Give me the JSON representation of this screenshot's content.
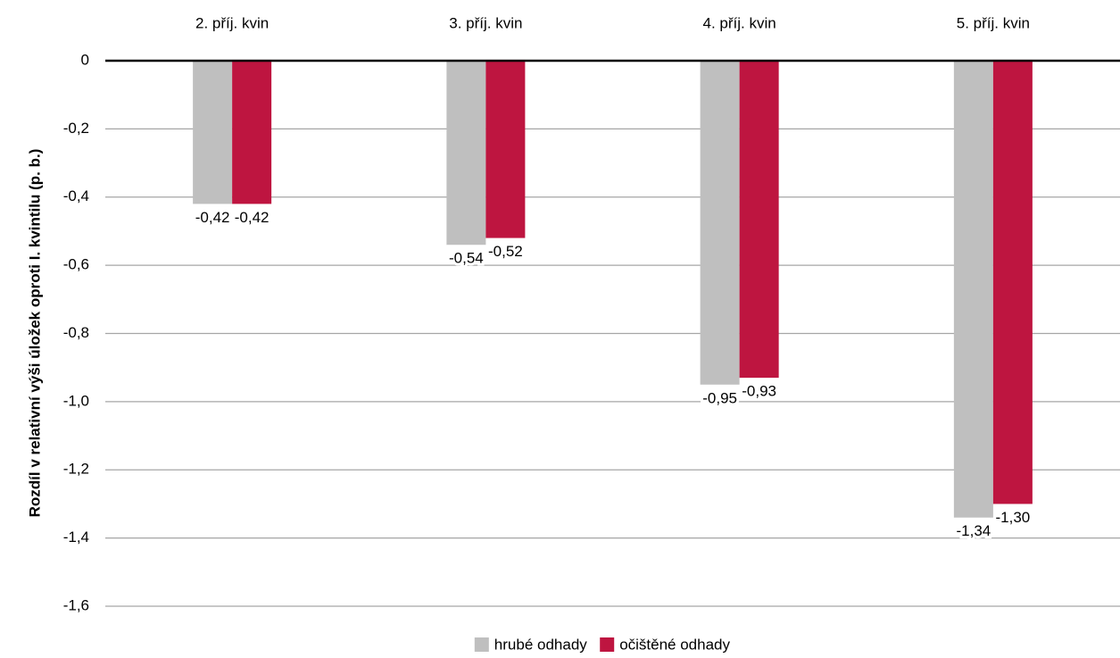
{
  "chart_data": {
    "type": "bar",
    "y_label": "Rozdíl v relativní výši úložek oproti I. kvintilu (p. b.)",
    "categories": [
      "2. příj. kvin",
      "3. příj. kvin",
      "4. příj. kvin",
      "5. příj. kvin"
    ],
    "series": [
      {
        "name": "hrubé odhady",
        "color": "#bfbfbf",
        "values": [
          -0.42,
          -0.54,
          -0.95,
          -1.34
        ],
        "value_labels": [
          "-0,42",
          "-0,54",
          "-0,95",
          "-1,34"
        ]
      },
      {
        "name": "očištěné odhady",
        "color": "#be1540",
        "values": [
          -0.42,
          -0.52,
          -0.93,
          -1.3
        ],
        "value_labels": [
          "-0,42",
          "-0,52",
          "-0,93",
          "-1,30"
        ]
      }
    ],
    "ylim": [
      -1.6,
      0
    ],
    "yticks": [
      0,
      {
        "value": -0.2,
        "label": "-0,2"
      },
      {
        "value": -0.4,
        "label": "-0,4"
      },
      {
        "value": -0.6,
        "label": "-0,6"
      },
      {
        "value": -0.8,
        "label": "-0,8"
      },
      {
        "value": -1.0,
        "label": "-1,0"
      },
      {
        "value": -1.2,
        "label": "-1,2"
      },
      {
        "value": -1.4,
        "label": "-1,4"
      },
      {
        "value": -1.6,
        "label": "-1,6"
      }
    ],
    "grid": true,
    "legend": "bottom"
  }
}
